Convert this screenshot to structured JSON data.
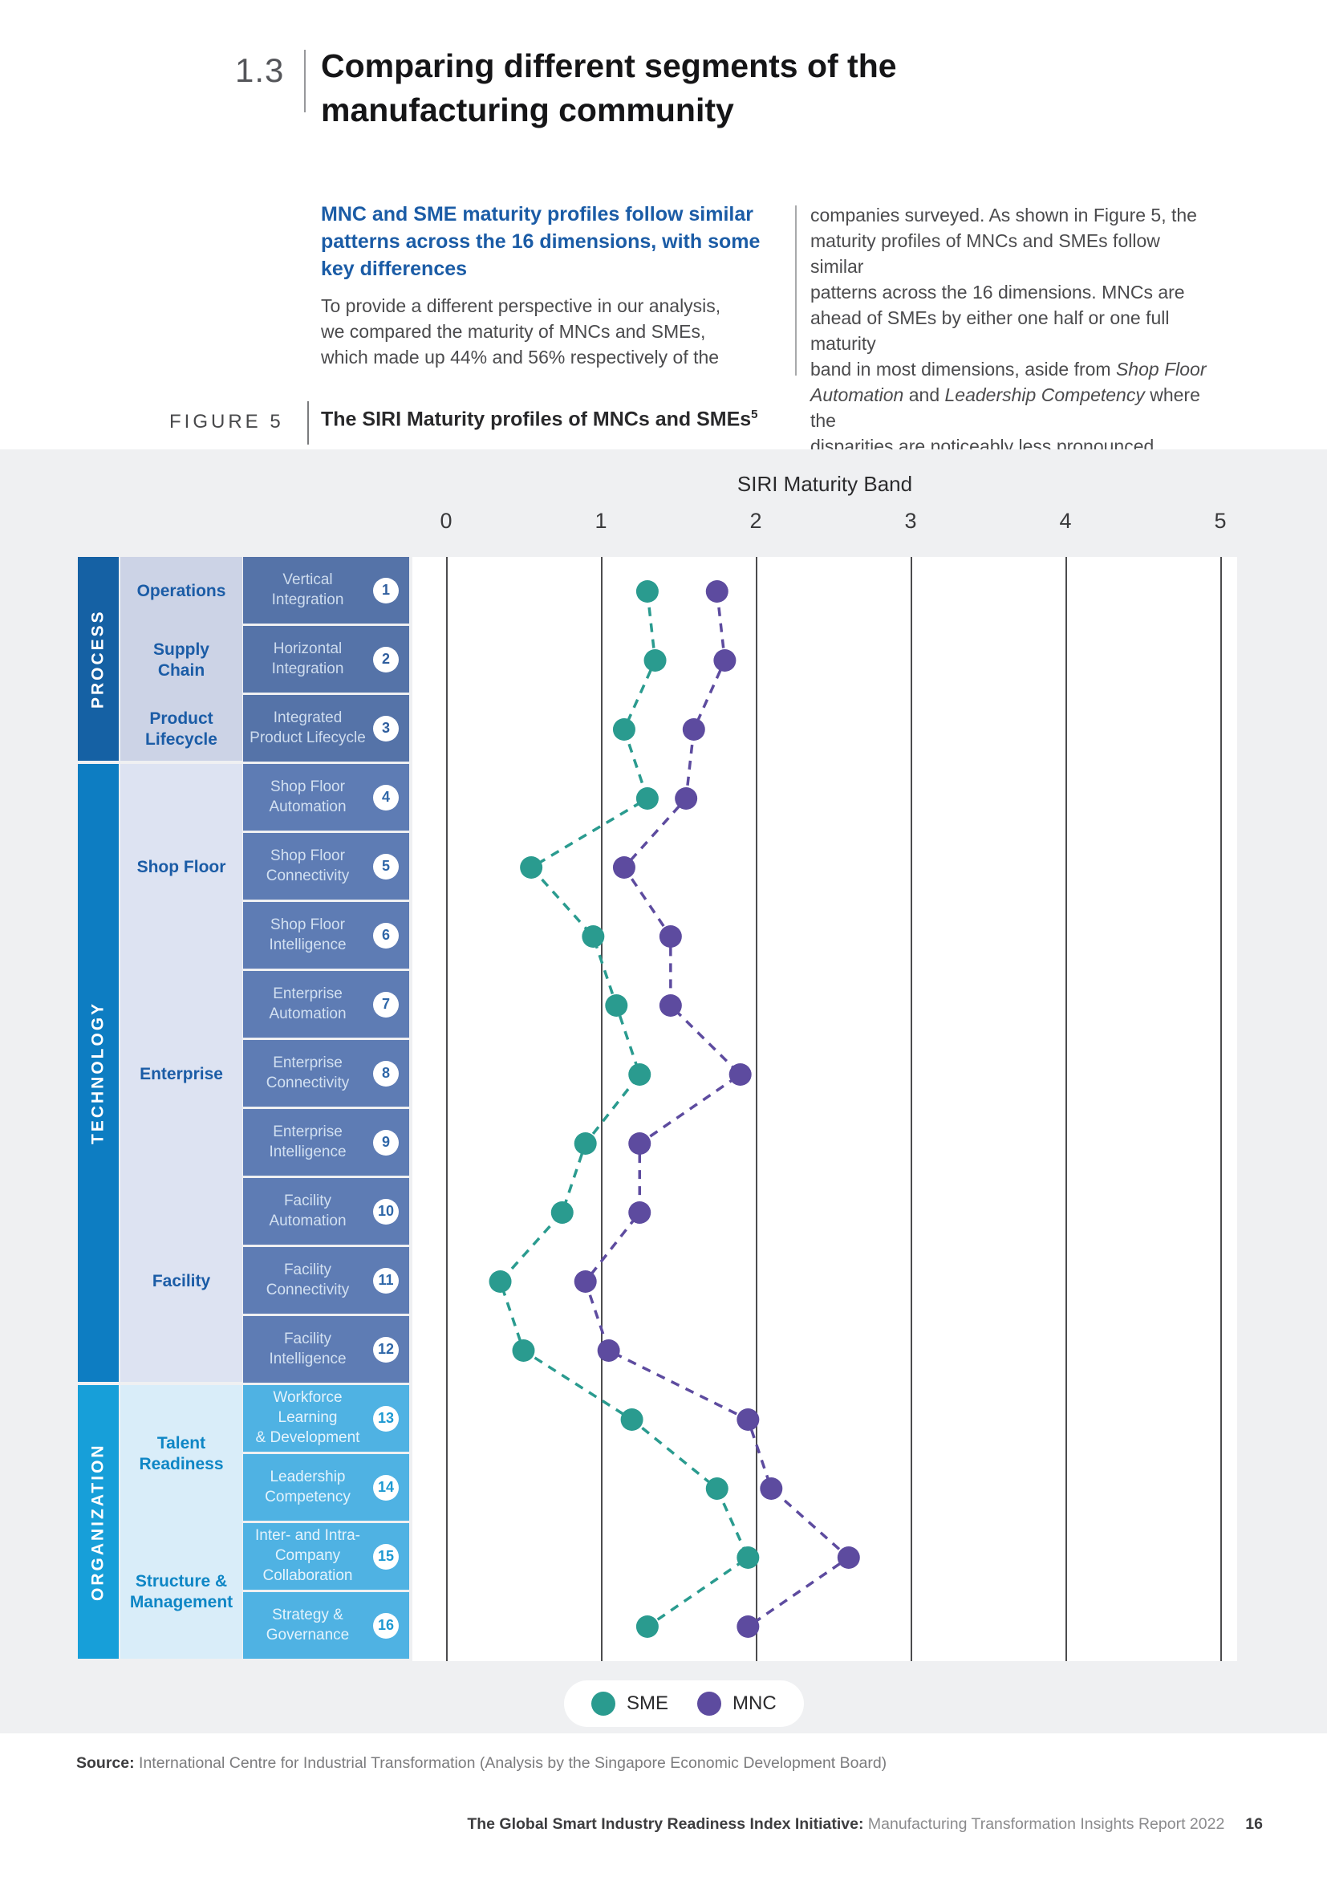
{
  "header": {
    "section_number": "1.3",
    "title": "Comparing different segments of the\nmanufacturing community"
  },
  "intro": {
    "heading": "MNC and SME maturity profiles follow similar\npatterns across the 16 dimensions, with some\nkey differences",
    "left_paragraph": "To provide a different perspective in our analysis,\nwe compared the maturity of MNCs and SMEs,\nwhich made up 44% and 56% respectively of the",
    "right_paragraph_parts": [
      {
        "text": "companies surveyed. As shown in Figure 5, the\nmaturity profiles of MNCs and SMEs follow similar\npatterns across the 16 dimensions. MNCs are\nahead of SMEs by either one half or one full maturity\nband in most dimensions, aside from ",
        "italic": false
      },
      {
        "text": "Shop Floor\nAutomation",
        "italic": true
      },
      {
        "text": " and ",
        "italic": false
      },
      {
        "text": "Leadership Competency",
        "italic": true
      },
      {
        "text": " where the\ndisparities are noticeably less pronounced.",
        "italic": false
      }
    ]
  },
  "figure": {
    "label": "FIGURE 5",
    "caption": "The SIRI Maturity profiles of MNCs and SMEs",
    "caption_superscript": "5"
  },
  "chart_data": {
    "type": "scatter",
    "axis_title": "SIRI Maturity Band",
    "x_ticks": [
      0,
      1,
      2,
      3,
      4,
      5
    ],
    "xlim": [
      0,
      5
    ],
    "grid": "vertical-lines",
    "legend_position": "bottom-center",
    "series": [
      {
        "name": "SME",
        "key": "sme",
        "color": "#2a9b8f"
      },
      {
        "name": "MNC",
        "key": "mnc",
        "color": "#5d4b9f"
      }
    ],
    "groups": [
      {
        "label": "PROCESS",
        "band_color": "#1561a4",
        "cell_color": "#5573a8",
        "cell_text_color": "#cedcee",
        "subcat_bg": "#ccd3e6",
        "subcat_text_color": "#1b5ca6",
        "badge_text_color": "#2f5e9e",
        "subcats": [
          {
            "label": "Operations",
            "rows": [
              0
            ]
          },
          {
            "label": "Supply\nChain",
            "rows": [
              1
            ]
          },
          {
            "label": "Product\nLifecycle",
            "rows": [
              2
            ]
          }
        ]
      },
      {
        "label": "TECHNOLOGY",
        "band_color": "#0d7dc2",
        "cell_color": "#5e7cb4",
        "cell_text_color": "#d2e0f1",
        "subcat_bg": "#dde3f2",
        "subcat_text_color": "#1b5ca6",
        "badge_text_color": "#2f67a8",
        "subcats": [
          {
            "label": "Shop Floor",
            "rows": [
              3,
              4,
              5
            ]
          },
          {
            "label": "Enterprise",
            "rows": [
              6,
              7,
              8
            ]
          },
          {
            "label": "Facility",
            "rows": [
              9,
              10,
              11
            ]
          }
        ]
      },
      {
        "label": "ORGANIZATION",
        "band_color": "#179fd9",
        "cell_color": "#4fb2e3",
        "cell_text_color": "#e4f3fc",
        "subcat_bg": "#d9edf9",
        "subcat_text_color": "#0e86c5",
        "badge_text_color": "#1d99d2",
        "subcats": [
          {
            "label": "Talent\nReadiness",
            "rows": [
              12,
              13
            ]
          },
          {
            "label": "Structure &\nManagement",
            "rows": [
              14,
              15
            ]
          }
        ]
      }
    ],
    "rows": [
      {
        "num": 1,
        "label": "Vertical\nIntegration",
        "sme": 1.3,
        "mnc": 1.75
      },
      {
        "num": 2,
        "label": "Horizontal\nIntegration",
        "sme": 1.35,
        "mnc": 1.8
      },
      {
        "num": 3,
        "label": "Integrated\nProduct Lifecycle",
        "sme": 1.15,
        "mnc": 1.6
      },
      {
        "num": 4,
        "label": "Shop Floor\nAutomation",
        "sme": 1.3,
        "mnc": 1.55
      },
      {
        "num": 5,
        "label": "Shop Floor\nConnectivity",
        "sme": 0.55,
        "mnc": 1.15
      },
      {
        "num": 6,
        "label": "Shop Floor\nIntelligence",
        "sme": 0.95,
        "mnc": 1.45
      },
      {
        "num": 7,
        "label": "Enterprise\nAutomation",
        "sme": 1.1,
        "mnc": 1.45
      },
      {
        "num": 8,
        "label": "Enterprise\nConnectivity",
        "sme": 1.25,
        "mnc": 1.9
      },
      {
        "num": 9,
        "label": "Enterprise\nIntelligence",
        "sme": 0.9,
        "mnc": 1.25
      },
      {
        "num": 10,
        "label": "Facility\nAutomation",
        "sme": 0.75,
        "mnc": 1.25
      },
      {
        "num": 11,
        "label": "Facility\nConnectivity",
        "sme": 0.35,
        "mnc": 0.9
      },
      {
        "num": 12,
        "label": "Facility\nIntelligence",
        "sme": 0.5,
        "mnc": 1.05
      },
      {
        "num": 13,
        "label": "Workforce Learning\n& Development",
        "sme": 1.2,
        "mnc": 1.95
      },
      {
        "num": 14,
        "label": "Leadership\nCompetency",
        "sme": 1.75,
        "mnc": 2.1
      },
      {
        "num": 15,
        "label": "Inter- and Intra-\nCompany\nCollaboration",
        "sme": 1.95,
        "mnc": 2.6
      },
      {
        "num": 16,
        "label": "Strategy &\nGovernance",
        "sme": 1.3,
        "mnc": 1.95
      }
    ]
  },
  "legend": {
    "items": [
      {
        "label": "SME",
        "color": "#2a9b8f"
      },
      {
        "label": "MNC",
        "color": "#5d4b9f"
      }
    ]
  },
  "source": {
    "label": "Source:",
    "text": " International Centre for Industrial Transformation (Analysis by the Singapore Economic Development Board)"
  },
  "footer": {
    "bold": "The Global Smart Industry Readiness Index Initiative:",
    "regular": " Manufacturing Transformation Insights Report 2022",
    "page": "16"
  }
}
